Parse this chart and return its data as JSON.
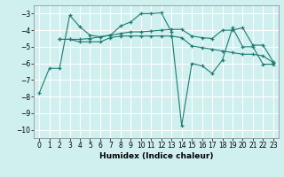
{
  "xlabel": "Humidex (Indice chaleur)",
  "xlim": [
    -0.5,
    23.5
  ],
  "ylim": [
    -10.5,
    -2.5
  ],
  "yticks": [
    -10,
    -9,
    -8,
    -7,
    -6,
    -5,
    -4,
    -3
  ],
  "xticks": [
    0,
    1,
    2,
    3,
    4,
    5,
    6,
    7,
    8,
    9,
    10,
    11,
    12,
    13,
    14,
    15,
    16,
    17,
    18,
    19,
    20,
    21,
    22,
    23
  ],
  "bg_color": "#cff0ef",
  "line_color": "#1e7b72",
  "grid_color": "#ffffff",
  "line1_x": [
    0,
    1,
    2,
    3,
    4,
    5,
    6,
    7,
    8,
    9,
    10,
    11,
    12,
    13,
    14,
    15,
    16,
    17,
    18,
    19,
    20,
    21,
    22,
    23
  ],
  "line1_y": [
    -7.8,
    -6.3,
    -6.3,
    -3.1,
    -3.8,
    -4.3,
    -4.4,
    -4.3,
    -3.75,
    -3.5,
    -3.0,
    -3.0,
    -2.95,
    -4.1,
    -9.75,
    -6.0,
    -6.15,
    -6.6,
    -5.8,
    -3.85,
    -5.0,
    -5.0,
    -6.05,
    -6.05
  ],
  "line2_x": [
    2,
    3,
    4,
    5,
    6,
    7,
    8,
    9,
    10,
    11,
    12,
    13,
    14,
    15,
    16,
    17,
    18,
    19,
    20,
    21,
    22,
    23
  ],
  "line2_y": [
    -4.55,
    -4.55,
    -4.55,
    -4.5,
    -4.4,
    -4.3,
    -4.2,
    -4.1,
    -4.1,
    -4.05,
    -4.0,
    -3.95,
    -3.95,
    -4.35,
    -4.45,
    -4.5,
    -4.0,
    -4.0,
    -3.85,
    -4.9,
    -4.9,
    -5.9
  ],
  "line3_x": [
    2,
    3,
    4,
    5,
    6,
    7,
    8,
    9,
    10,
    11,
    12,
    13,
    14,
    15,
    16,
    17,
    18,
    19,
    20,
    21,
    22,
    23
  ],
  "line3_y": [
    -4.55,
    -4.55,
    -4.7,
    -4.7,
    -4.7,
    -4.45,
    -4.35,
    -4.35,
    -4.35,
    -4.35,
    -4.35,
    -4.35,
    -4.45,
    -4.95,
    -5.05,
    -5.15,
    -5.25,
    -5.35,
    -5.45,
    -5.45,
    -5.55,
    -5.95
  ]
}
